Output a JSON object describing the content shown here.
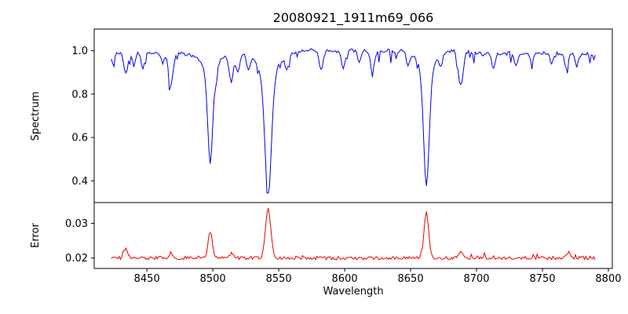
{
  "figure": {
    "background": "#ffffff",
    "axes_color": "#000000"
  },
  "chart_data": [
    {
      "type": "line",
      "title": "20080921_1911m69_066",
      "ylabel": "Spectrum",
      "xlabel": "Wavelength",
      "line_color": "#0000ee",
      "xlim": [
        8410,
        8803
      ],
      "ylim": [
        0.3,
        1.1
      ],
      "x_range_data": [
        8423,
        8790
      ],
      "yticks": [
        0.4,
        0.6,
        0.8,
        1.0
      ],
      "yticklabels": [
        "0.4",
        "0.6",
        "0.8",
        "1.0"
      ],
      "grid": false,
      "legend": "none",
      "continuum_level": 0.99,
      "noise_amplitude": 0.009,
      "major_absorption_lines": [
        {
          "center": 8498,
          "min_flux": 0.49,
          "core_width": 1.8,
          "wing_depth": 0.1,
          "wing_width": 5
        },
        {
          "center": 8542,
          "min_flux": 0.33,
          "core_width": 2.4,
          "wing_depth": 0.12,
          "wing_width": 7
        },
        {
          "center": 8662,
          "min_flux": 0.37,
          "core_width": 2.1,
          "wing_depth": 0.1,
          "wing_width": 6
        }
      ],
      "minor_absorption_lines": [
        {
          "center": 8424,
          "depth": 0.05,
          "width": 1.2
        },
        {
          "center": 8434,
          "depth": 0.1,
          "width": 1.5
        },
        {
          "center": 8440,
          "depth": 0.06,
          "width": 1.2
        },
        {
          "center": 8447,
          "depth": 0.07,
          "width": 1.3
        },
        {
          "center": 8462,
          "depth": 0.05,
          "width": 1.2
        },
        {
          "center": 8468,
          "depth": 0.15,
          "width": 1.7
        },
        {
          "center": 8514,
          "depth": 0.13,
          "width": 1.6
        },
        {
          "center": 8519,
          "depth": 0.09,
          "width": 1.4
        },
        {
          "center": 8527,
          "depth": 0.07,
          "width": 1.3
        },
        {
          "center": 8556,
          "depth": 0.06,
          "width": 1.3
        },
        {
          "center": 8582,
          "depth": 0.09,
          "width": 1.5
        },
        {
          "center": 8599,
          "depth": 0.08,
          "width": 1.4
        },
        {
          "center": 8611,
          "depth": 0.05,
          "width": 1.2
        },
        {
          "center": 8621,
          "depth": 0.09,
          "width": 1.5
        },
        {
          "center": 8648,
          "depth": 0.06,
          "width": 1.3
        },
        {
          "center": 8673,
          "depth": 0.05,
          "width": 1.2
        },
        {
          "center": 8688,
          "depth": 0.16,
          "width": 1.8
        },
        {
          "center": 8713,
          "depth": 0.07,
          "width": 1.4
        },
        {
          "center": 8730,
          "depth": 0.06,
          "width": 1.3
        },
        {
          "center": 8742,
          "depth": 0.05,
          "width": 1.2
        },
        {
          "center": 8757,
          "depth": 0.05,
          "width": 1.2
        },
        {
          "center": 8768,
          "depth": 0.06,
          "width": 1.3
        },
        {
          "center": 8776,
          "depth": 0.05,
          "width": 1.2
        }
      ]
    },
    {
      "type": "line",
      "ylabel": "Error",
      "line_color": "#ee0000",
      "xlim": [
        8410,
        8803
      ],
      "ylim": [
        0.017,
        0.036
      ],
      "yticks": [
        0.02,
        0.03
      ],
      "yticklabels": [
        "0.02",
        "0.03"
      ],
      "xticks": [
        8450,
        8500,
        8550,
        8600,
        8650,
        8700,
        8750,
        8800
      ],
      "xticklabels": [
        "8450",
        "8500",
        "8550",
        "8600",
        "8650",
        "8700",
        "8750",
        "8800"
      ],
      "grid": false,
      "legend": "none",
      "baseline": 0.02,
      "noise_amplitude": 0.0005,
      "peaks": [
        {
          "center": 8434,
          "peak_value": 0.0225,
          "width": 1.4
        },
        {
          "center": 8468,
          "peak_value": 0.0215,
          "width": 1.4
        },
        {
          "center": 8498,
          "peak_value": 0.0275,
          "width": 1.6
        },
        {
          "center": 8514,
          "peak_value": 0.0215,
          "width": 1.4
        },
        {
          "center": 8542,
          "peak_value": 0.034,
          "width": 2.0
        },
        {
          "center": 8662,
          "peak_value": 0.033,
          "width": 1.8
        },
        {
          "center": 8688,
          "peak_value": 0.022,
          "width": 1.5
        },
        {
          "center": 8770,
          "peak_value": 0.0215,
          "width": 1.5
        }
      ]
    }
  ]
}
